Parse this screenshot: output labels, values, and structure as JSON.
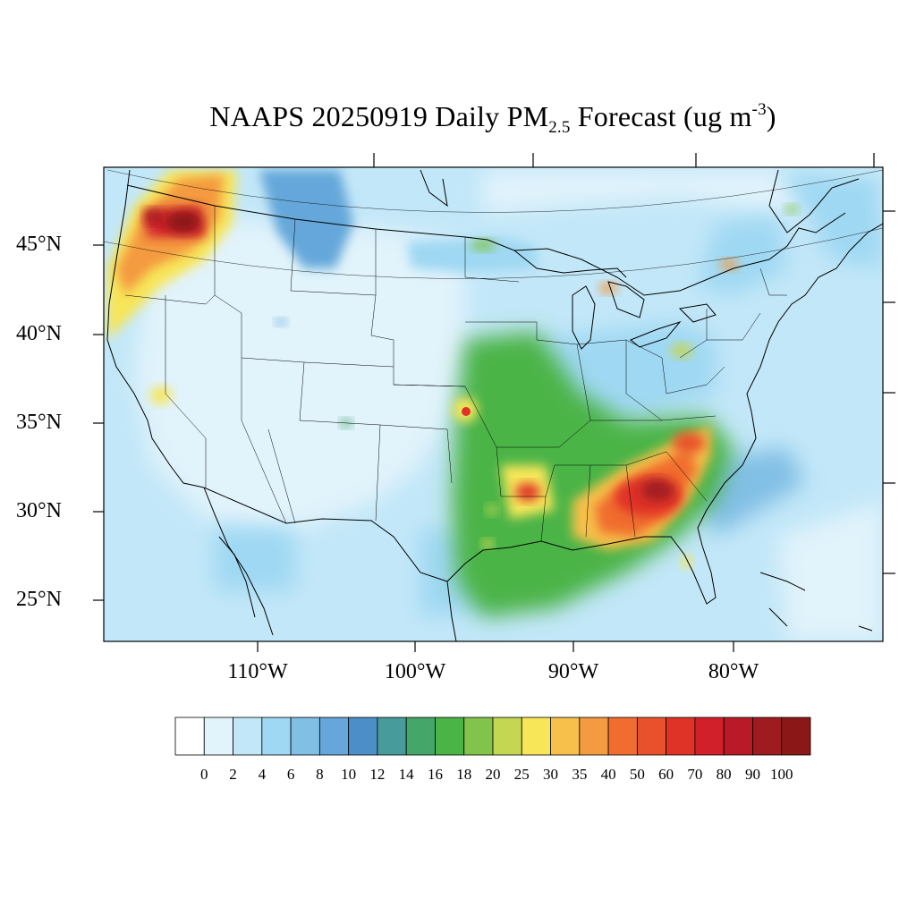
{
  "title": {
    "prefix": "NAAPS 20250919 Daily PM",
    "subscript": "2.5",
    "middle": " Forecast (ug m",
    "superscript": "-3",
    "suffix": ")"
  },
  "lat_labels": [
    "45°N",
    "40°N",
    "35°N",
    "30°N",
    "25°N"
  ],
  "lon_labels": [
    "110°W",
    "100°W",
    "90°W",
    "80°W"
  ],
  "colorbar": {
    "labels": [
      "0",
      "2",
      "4",
      "6",
      "8",
      "10",
      "12",
      "14",
      "16",
      "18",
      "20",
      "25",
      "30",
      "35",
      "40",
      "50",
      "60",
      "70",
      "80",
      "90",
      "100"
    ],
    "colors": [
      "#ffffff",
      "#e1f3fb",
      "#c2e7f8",
      "#9fd8f3",
      "#82bfe5",
      "#65a7da",
      "#4c8ec8",
      "#479b9b",
      "#45a66a",
      "#4bb447",
      "#82c44b",
      "#c3d752",
      "#f7e658",
      "#f7c04a",
      "#f49a40",
      "#f06d2f",
      "#e8512b",
      "#df3327",
      "#d2202b",
      "#b81b27",
      "#a01b20",
      "#8c1717"
    ]
  }
}
